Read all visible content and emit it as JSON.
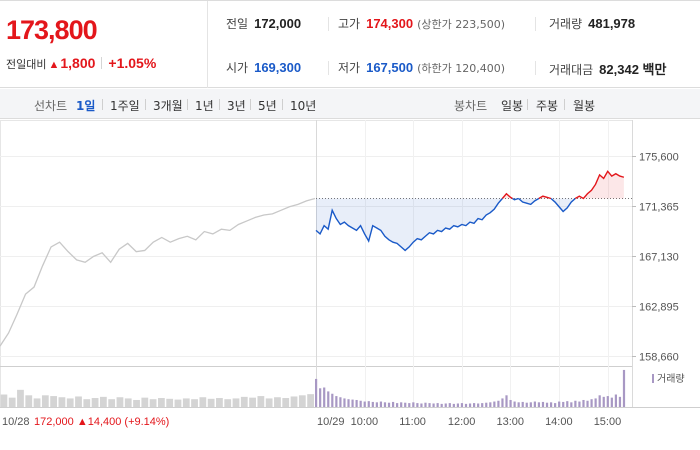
{
  "summary": {
    "current_price": "173,800",
    "change_label": "전일대비",
    "change_arrow": "▲",
    "change_amount": "1,800",
    "change_rate": "+1.05%",
    "prev_close": {
      "label": "전일",
      "value": "172,000"
    },
    "high": {
      "label": "고가",
      "value": "174,300",
      "note": "(상한가 223,500)"
    },
    "volume": {
      "label": "거래량",
      "value": "481,978"
    },
    "open": {
      "label": "시가",
      "value": "169,300"
    },
    "low": {
      "label": "저가",
      "value": "167,500",
      "note": "(하한가 120,400)"
    },
    "trade_value": {
      "label": "거래대금",
      "value": "82,342 백만"
    }
  },
  "tabs": {
    "line_title": "선차트",
    "line_tabs": [
      "1일",
      "1주일",
      "3개월",
      "1년",
      "3년",
      "5년",
      "10년"
    ],
    "active_line_tab": "1일",
    "candle_title": "봉차트",
    "candle_tabs": [
      "일봉",
      "주봉",
      "월봉"
    ]
  },
  "colors": {
    "up": "#e3161b",
    "down": "#1a5ac8",
    "prev_day_line": "#c8c8c8",
    "volume_prev": "#d4d4d4",
    "volume_today": "#a898c4"
  },
  "chart_data": {
    "type": "line",
    "y_ticks": [
      "175,600",
      "171,365",
      "167,130",
      "162,895",
      "158,660"
    ],
    "ylim": [
      158660,
      175600
    ],
    "baseline": 172000,
    "x_ticks": [
      "10/29",
      "10:00",
      "11:00",
      "12:00",
      "13:00",
      "14:00",
      "15:00"
    ],
    "prev_day_label": "10/28",
    "prev_day_info": {
      "close": "172,000",
      "arrow": "▲",
      "change": "14,400",
      "rate": "(+9.14%)"
    },
    "volume_legend": "거래량",
    "series": [
      {
        "day": "10/28",
        "values": [
          159500,
          160600,
          162200,
          163900,
          164500,
          166300,
          167900,
          168300,
          167500,
          166800,
          166600,
          167100,
          167400,
          166600,
          167700,
          168200,
          167500,
          167600,
          168300,
          168700,
          168300,
          168600,
          168800,
          168500,
          169200,
          169000,
          169400,
          169300,
          169800,
          170100,
          170400,
          170600,
          170700,
          171000,
          171300,
          171500,
          171800,
          172000
        ]
      },
      {
        "day": "10/29",
        "times": [
          "09:00",
          "09:05",
          "09:10",
          "09:15",
          "09:20",
          "09:25",
          "09:30",
          "09:35",
          "09:40",
          "09:45",
          "09:50",
          "09:55",
          "10:00",
          "10:05",
          "10:10",
          "10:15",
          "10:20",
          "10:25",
          "10:30",
          "10:35",
          "10:40",
          "10:45",
          "10:50",
          "10:55",
          "11:00",
          "11:05",
          "11:10",
          "11:15",
          "11:20",
          "11:25",
          "11:30",
          "11:35",
          "11:40",
          "11:45",
          "11:50",
          "11:55",
          "12:00",
          "12:05",
          "12:10",
          "12:15",
          "12:20",
          "12:25",
          "12:30",
          "12:35",
          "12:40",
          "12:45",
          "12:50",
          "12:55",
          "13:00",
          "13:05",
          "13:10",
          "13:15",
          "13:20",
          "13:25",
          "13:30",
          "13:35",
          "13:40",
          "13:45",
          "13:50",
          "13:55",
          "14:00",
          "14:05",
          "14:10",
          "14:15",
          "14:20",
          "14:25",
          "14:30",
          "14:35",
          "14:40",
          "14:45",
          "14:50",
          "14:55",
          "15:00",
          "15:05",
          "15:10",
          "15:15",
          "15:20"
        ],
        "values": [
          169300,
          169000,
          169700,
          169400,
          171000,
          170300,
          169800,
          170000,
          169700,
          169500,
          169300,
          169700,
          169000,
          168400,
          169700,
          169500,
          169300,
          168800,
          168500,
          168300,
          168200,
          167900,
          167600,
          167900,
          168300,
          168600,
          168500,
          168800,
          169100,
          169000,
          169300,
          169200,
          169500,
          169400,
          169700,
          169600,
          169800,
          169700,
          170000,
          169900,
          170300,
          170200,
          170600,
          170800,
          171100,
          171600,
          172000,
          172400,
          172100,
          171900,
          172000,
          171700,
          171600,
          171500,
          171800,
          172000,
          172200,
          172100,
          172000,
          171700,
          171300,
          170900,
          171200,
          171700,
          172000,
          172200,
          172000,
          172400,
          172700,
          173200,
          174000,
          173700,
          174300,
          173900,
          174100,
          173900,
          173800
        ]
      }
    ],
    "volume": {
      "prev_day": [
        0.32,
        0.24,
        0.44,
        0.3,
        0.22,
        0.3,
        0.28,
        0.25,
        0.22,
        0.27,
        0.2,
        0.23,
        0.26,
        0.2,
        0.25,
        0.22,
        0.18,
        0.24,
        0.2,
        0.23,
        0.21,
        0.19,
        0.22,
        0.2,
        0.25,
        0.21,
        0.23,
        0.2,
        0.22,
        0.26,
        0.24,
        0.28,
        0.22,
        0.25,
        0.23,
        0.27,
        0.3,
        0.33
      ],
      "today": [
        0.72,
        0.48,
        0.5,
        0.4,
        0.34,
        0.28,
        0.25,
        0.22,
        0.2,
        0.19,
        0.18,
        0.16,
        0.14,
        0.15,
        0.13,
        0.12,
        0.14,
        0.12,
        0.11,
        0.13,
        0.1,
        0.12,
        0.11,
        0.1,
        0.12,
        0.1,
        0.09,
        0.11,
        0.1,
        0.09,
        0.1,
        0.08,
        0.09,
        0.1,
        0.08,
        0.09,
        0.1,
        0.08,
        0.09,
        0.1,
        0.09,
        0.1,
        0.11,
        0.12,
        0.14,
        0.16,
        0.22,
        0.3,
        0.18,
        0.14,
        0.12,
        0.13,
        0.11,
        0.12,
        0.14,
        0.12,
        0.13,
        0.11,
        0.12,
        0.1,
        0.14,
        0.13,
        0.15,
        0.12,
        0.16,
        0.14,
        0.18,
        0.16,
        0.2,
        0.22,
        0.3,
        0.26,
        0.28,
        0.24,
        0.32,
        0.26,
        0.95
      ]
    }
  }
}
